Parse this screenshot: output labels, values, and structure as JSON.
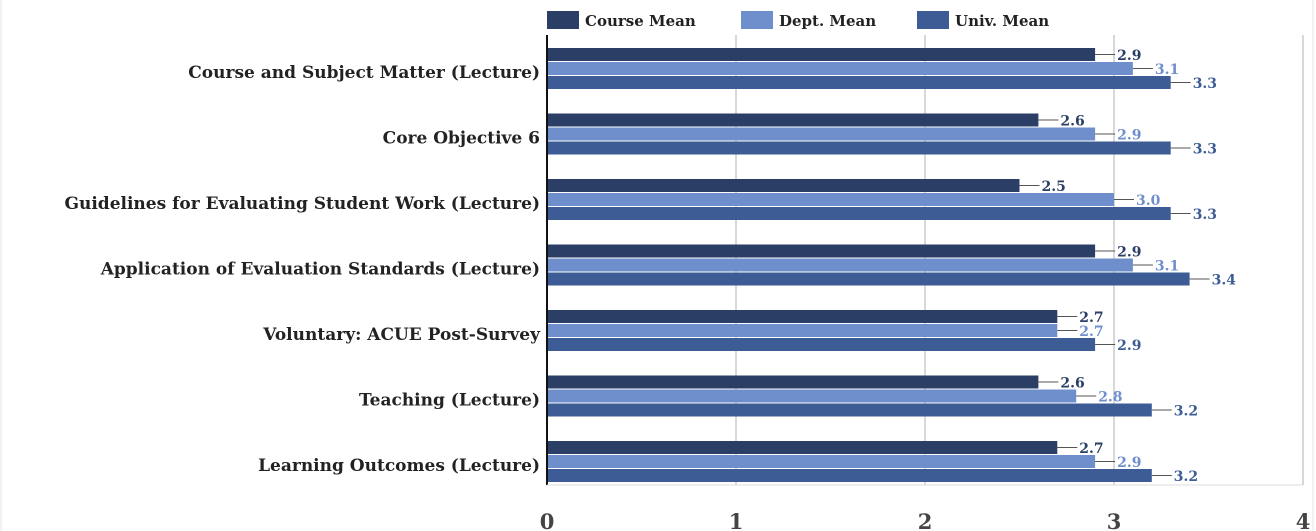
{
  "chart_data": {
    "type": "bar",
    "orientation": "horizontal",
    "categories": [
      "Course and Subject Matter (Lecture)",
      "Core Objective 6",
      "Guidelines for Evaluating Student Work (Lecture)",
      "Application of Evaluation Standards (Lecture)",
      "Voluntary: ACUE Post-Survey",
      "Teaching (Lecture)",
      "Learning Outcomes (Lecture)"
    ],
    "series": [
      {
        "name": "Course Mean",
        "color": "#2b3f66",
        "label_color": "#2b3f66",
        "values": [
          2.9,
          2.6,
          2.5,
          2.9,
          2.7,
          2.6,
          2.7
        ]
      },
      {
        "name": "Dept. Mean",
        "color": "#6f8fcc",
        "label_color": "#6f8fcc",
        "values": [
          3.1,
          2.9,
          3.0,
          3.1,
          2.7,
          2.8,
          2.9
        ]
      },
      {
        "name": "Univ. Mean",
        "color": "#3d5c95",
        "label_color": "#3d5c95",
        "values": [
          3.3,
          3.3,
          3.3,
          3.4,
          2.9,
          3.2,
          3.2
        ]
      }
    ],
    "xlim": [
      0,
      4
    ],
    "xticks": [
      "0",
      "1",
      "2",
      "3",
      "4"
    ],
    "grid": true,
    "legend": "top",
    "title": "",
    "xlabel": "",
    "ylabel": ""
  }
}
